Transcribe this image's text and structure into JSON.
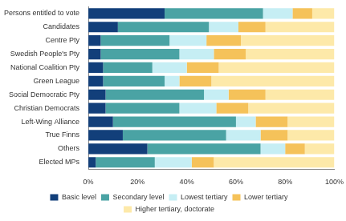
{
  "chart_data": {
    "type": "bar",
    "orientation": "horizontal",
    "stacked": true,
    "grid": false,
    "legend": "bottom",
    "categories": [
      "Persons entitled to vote",
      "Candidates",
      "Centre Pty",
      "Swedish People's Pty",
      "National Coalition Pty",
      "Green League",
      "Social Democratic Pty",
      "Christian Democrats",
      "Left-Wing Alliance",
      "True Finns",
      "Others",
      "Elected MPs"
    ],
    "series": [
      {
        "name": "Basic level",
        "color": "#123f7a",
        "values": [
          31,
          12,
          5,
          5,
          6,
          6,
          7,
          7,
          10,
          14,
          24,
          3
        ]
      },
      {
        "name": "Secondary level",
        "color": "#4aa3a4",
        "values": [
          40,
          37,
          28,
          32,
          20,
          25,
          40,
          30,
          50,
          42,
          46,
          24
        ]
      },
      {
        "name": "Lowest tertiary",
        "color": "#c6eef4",
        "values": [
          12,
          12,
          15,
          14,
          14,
          6,
          10,
          15,
          8,
          14,
          10,
          15
        ]
      },
      {
        "name": "Lower tertiary",
        "color": "#f5c25a",
        "values": [
          8,
          11,
          14,
          13,
          13,
          13,
          15,
          13,
          13,
          11,
          8,
          9
        ]
      },
      {
        "name": "Higher tertiary, doctorate",
        "color": "#fde9a9",
        "values": [
          9,
          28,
          38,
          36,
          47,
          50,
          28,
          35,
          19,
          19,
          12,
          49
        ]
      }
    ],
    "xlim": [
      0,
      100
    ],
    "xticks": [
      {
        "value": 0,
        "label": "0%"
      },
      {
        "value": 20,
        "label": "20%"
      },
      {
        "value": 40,
        "label": "40%"
      },
      {
        "value": 60,
        "label": "60%"
      },
      {
        "value": 80,
        "label": "80%"
      },
      {
        "value": 100,
        "label": "100%"
      }
    ]
  }
}
